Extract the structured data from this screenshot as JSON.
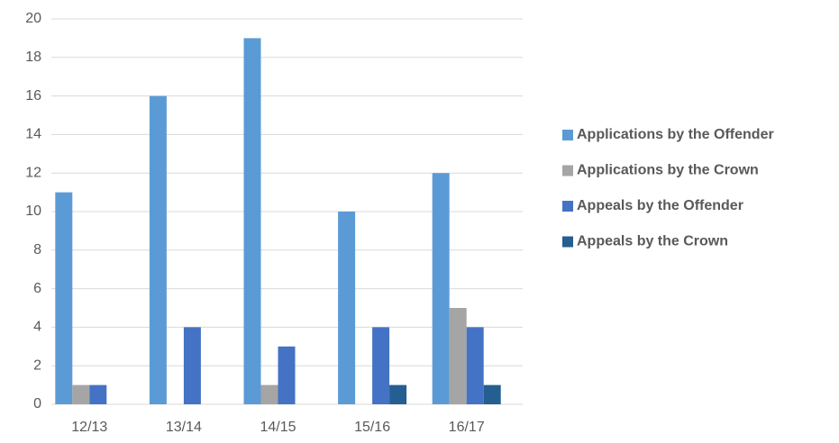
{
  "chart_data": {
    "type": "bar",
    "categories": [
      "12/13",
      "13/14",
      "14/15",
      "15/16",
      "16/17"
    ],
    "series": [
      {
        "name": "Applications by the Offender",
        "color": "#5b9bd5",
        "values": [
          11,
          16,
          19,
          10,
          12
        ]
      },
      {
        "name": "Applications by the Crown",
        "color": "#a5a5a5",
        "values": [
          1,
          0,
          1,
          0,
          5
        ]
      },
      {
        "name": "Appeals by the Offender",
        "color": "#4472c4",
        "values": [
          1,
          4,
          3,
          4,
          4
        ]
      },
      {
        "name": "Appeals by the Crown",
        "color": "#255e91",
        "values": [
          0,
          0,
          0,
          1,
          1
        ]
      }
    ],
    "ylim": [
      0,
      20
    ],
    "yticks": [
      0,
      2,
      4,
      6,
      8,
      10,
      12,
      14,
      16,
      18,
      20
    ],
    "grid": true,
    "legend": "right"
  }
}
